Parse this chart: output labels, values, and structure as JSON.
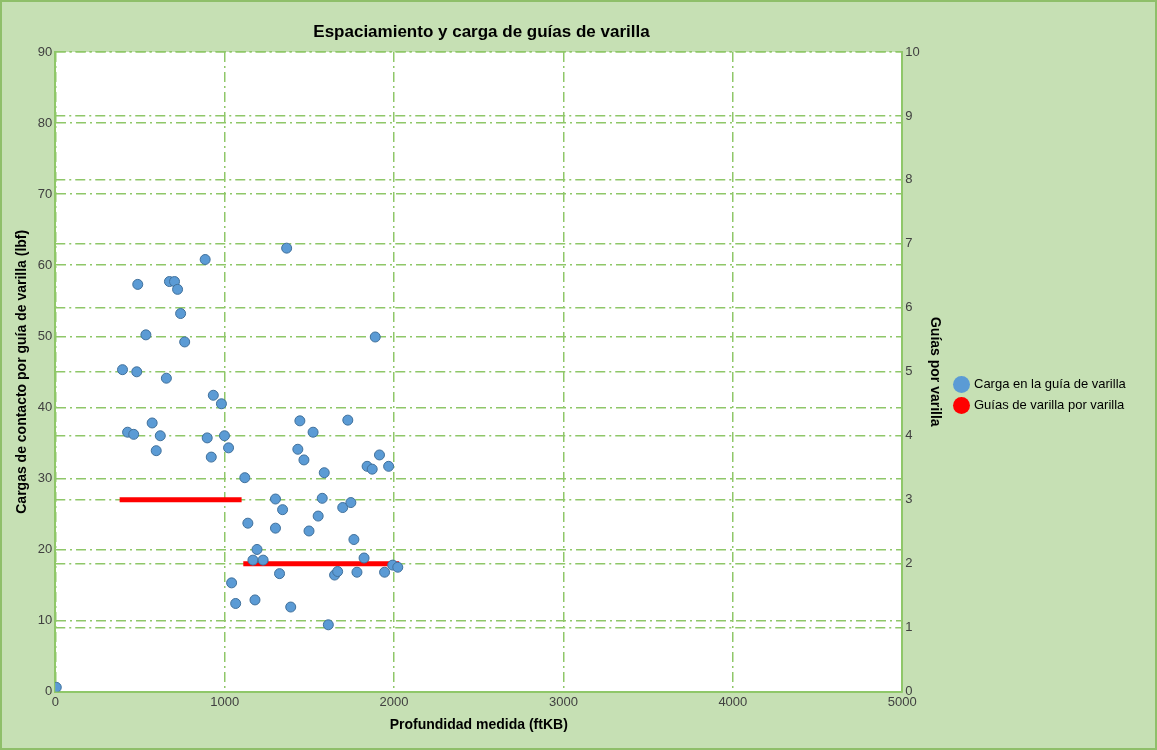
{
  "chart_data": {
    "type": "scatter",
    "title": "Espaciamiento y carga de guías de varilla",
    "xlabel": "Profundidad medida (ftKB)",
    "ylabel": "Cargas de contacto por guía de varilla (lbf)",
    "y2label": "Guías por varilla",
    "xlim": [
      0,
      5000
    ],
    "xticks": [
      0,
      1000,
      2000,
      3000,
      4000,
      5000
    ],
    "ylim": [
      0,
      90
    ],
    "yticks": [
      0,
      10,
      20,
      30,
      40,
      50,
      60,
      70,
      80,
      90
    ],
    "y2lim": [
      0,
      10
    ],
    "y2ticks": [
      0,
      1,
      2,
      3,
      4,
      5,
      6,
      7,
      8,
      9,
      10
    ],
    "grid": true,
    "legend": "right",
    "marker": "circle",
    "series": [
      {
        "name": "Carga en la guía de varilla",
        "color": "#5b9bd5",
        "x": [
          6,
          397,
          481,
          487,
          535,
          656,
          674,
          704,
          722,
          740,
          764,
          885,
          933,
          981,
          427,
          463,
          572,
          620,
          596,
          897,
          999,
          921,
          1023,
          1119,
          1137,
          1300,
          1300,
          1342,
          1191,
          1167,
          1227,
          1324,
          1041,
          1065,
          1179,
          1390,
          1612,
          1366,
          1444,
          1522,
          1432,
          1468,
          1588,
          1576,
          1552,
          1498,
          1649,
          1667,
          1697,
          1745,
          1727,
          1763,
          1781,
          1823,
          1841,
          1871,
          1914,
          1889,
          1968,
          1944,
          1992,
          2022
        ],
        "values": [
          0.6,
          45.3,
          45,
          57.3,
          50.2,
          44.1,
          57.7,
          57.7,
          56.6,
          53.2,
          49.2,
          60.8,
          41.7,
          40.5,
          36.5,
          36.2,
          37.8,
          36,
          33.9,
          35.7,
          36,
          33,
          34.3,
          30.1,
          23.7,
          23,
          27.1,
          25.6,
          20,
          18.5,
          18.5,
          16.6,
          15.3,
          12.4,
          12.9,
          11.9,
          9.4,
          62.4,
          38.1,
          36.5,
          34.1,
          32.6,
          30.8,
          27.2,
          24.7,
          22.6,
          16.4,
          16.9,
          25.9,
          26.6,
          38.2,
          21.4,
          16.8,
          18.8,
          31.7,
          31.3,
          33.3,
          49.9,
          31.7,
          16.8,
          17.8,
          17.5
        ]
      },
      {
        "name": "Guías de varilla por varilla",
        "color": "#ff0000",
        "type": "line",
        "axis": "y2",
        "marker": "none",
        "x": [
          380,
          1100,
          1105,
          1110,
          2030
        ],
        "values": [
          3,
          3,
          null,
          2,
          2
        ]
      }
    ]
  }
}
